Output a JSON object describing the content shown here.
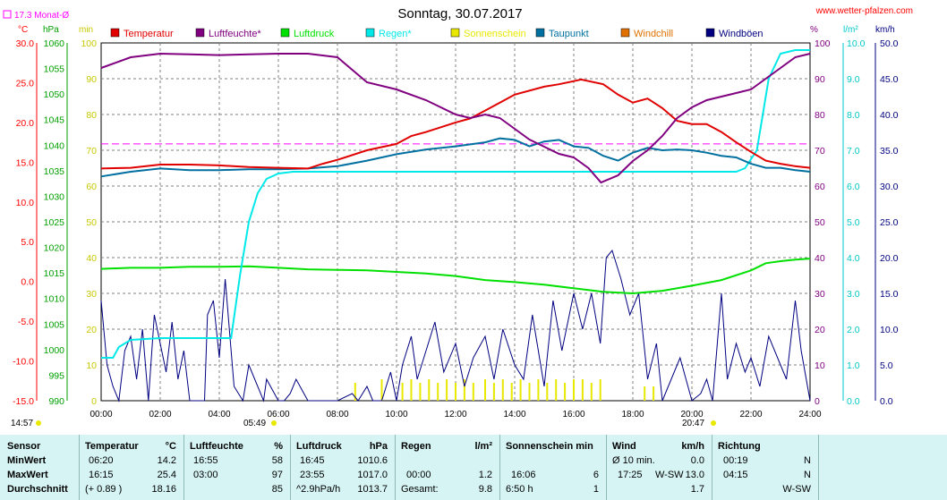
{
  "header": {
    "title": "Sonntag, 30.07.2017",
    "site": "www.wetter-pfalzen.com",
    "monthly_avg": "17.3 Monat-Ø"
  },
  "units": {
    "temp": "°C",
    "hpa": "hPa",
    "min": "min",
    "pct": "%",
    "lm2": "l/m²",
    "kmh": "km/h"
  },
  "legend": [
    {
      "name": "Temperatur",
      "color": "#e00000"
    },
    {
      "name": "Luftfeuchte*",
      "color": "#800080"
    },
    {
      "name": "Luftdruck",
      "color": "#00e000"
    },
    {
      "name": "Regen*",
      "color": "#00e8e8"
    },
    {
      "name": "Sonnenschein",
      "color": "#e8e800"
    },
    {
      "name": "Taupunkt",
      "color": "#0070a0"
    },
    {
      "name": "Windchill",
      "color": "#e07000"
    },
    {
      "name": "Windböen",
      "color": "#000080"
    }
  ],
  "chart_data": {
    "type": "line",
    "x_ticks": [
      "00:00",
      "02:00",
      "04:00",
      "06:00",
      "08:00",
      "10:00",
      "12:00",
      "14:00",
      "16:00",
      "18:00",
      "20:00",
      "22:00",
      "24:00"
    ],
    "axes": {
      "temp": {
        "ticks": [
          "30.0",
          "25.0",
          "20.0",
          "15.0",
          "10.0",
          "5.0",
          "0.0",
          "-5.0",
          "-10.0",
          "-15.0"
        ],
        "range": [
          -15,
          30
        ]
      },
      "hpa": {
        "ticks": [
          "1060",
          "1055",
          "1050",
          "1045",
          "1040",
          "1035",
          "1030",
          "1025",
          "1020",
          "1015",
          "1010",
          "1005",
          "1000",
          "995",
          "990"
        ],
        "range": [
          990,
          1060
        ]
      },
      "min": {
        "ticks": [
          "100",
          "90",
          "80",
          "70",
          "60",
          "50",
          "40",
          "30",
          "20",
          "10",
          "0"
        ],
        "range": [
          0,
          100
        ]
      },
      "pct": {
        "ticks": [
          "100",
          "90",
          "80",
          "70",
          "60",
          "50",
          "40",
          "30",
          "20",
          "10",
          "0"
        ],
        "range": [
          0,
          100
        ]
      },
      "lm2": {
        "ticks": [
          "10.0",
          "9.0",
          "8.0",
          "7.0",
          "6.0",
          "5.0",
          "4.0",
          "3.0",
          "2.0",
          "1.0",
          "0.0"
        ],
        "range": [
          0,
          10
        ]
      },
      "kmh": {
        "ticks": [
          "50.0",
          "45.0",
          "40.0",
          "35.0",
          "30.0",
          "25.0",
          "20.0",
          "15.0",
          "10.0",
          "5.0",
          "0.0"
        ],
        "range": [
          0,
          50
        ]
      }
    },
    "monthly_avg_temp": 17.3,
    "sunrise": "05:49",
    "sunset": "20:47",
    "left_time": "14:57",
    "series": [
      {
        "name": "Temperatur",
        "unit": "°C",
        "color": "#e00000",
        "x": [
          0,
          1,
          2,
          3,
          4,
          5,
          6,
          7,
          7.5,
          8,
          9,
          10,
          10.5,
          11,
          12,
          12.5,
          13,
          13.5,
          14,
          15,
          15.5,
          16,
          16.25,
          17,
          17.5,
          18,
          18.5,
          19,
          19.5,
          20,
          20.5,
          21,
          21.5,
          22,
          22.5,
          23,
          23.5,
          24
        ],
        "y": [
          14.2,
          14.3,
          14.7,
          14.7,
          14.6,
          14.4,
          14.3,
          14.2,
          14.8,
          15.3,
          16.5,
          17.3,
          18.3,
          18.8,
          20,
          20.5,
          21.5,
          22.5,
          23.5,
          24.5,
          24.8,
          25.2,
          25.4,
          24.8,
          23.5,
          22.5,
          23.0,
          21.8,
          20.2,
          19.8,
          19.8,
          18.8,
          17.5,
          16.3,
          15.2,
          14.8,
          14.5,
          14.3
        ]
      },
      {
        "name": "Luftfeuchte*",
        "unit": "%",
        "color": "#800080",
        "x": [
          0,
          1,
          2,
          3,
          4,
          5,
          6,
          7,
          8,
          9,
          10,
          11,
          12,
          12.5,
          13,
          13.5,
          14,
          14.5,
          15,
          15.5,
          16,
          16.5,
          16.92,
          17.5,
          18,
          18.5,
          19,
          19.5,
          20,
          20.5,
          21,
          21.5,
          22,
          22.5,
          23,
          23.5,
          24
        ],
        "y": [
          93,
          96,
          97,
          96.8,
          96.6,
          96.8,
          97,
          97,
          96,
          89,
          87,
          84,
          80,
          79,
          80,
          79,
          76,
          73,
          71,
          69,
          68,
          65,
          61,
          63,
          67,
          70,
          74,
          79,
          82,
          84,
          85,
          86,
          87,
          90,
          93,
          96,
          97
        ]
      },
      {
        "name": "Luftdruck",
        "unit": "hPa",
        "color": "#00e000",
        "x": [
          0,
          1,
          2,
          3,
          4,
          5,
          6,
          7,
          8,
          9,
          10,
          11,
          12,
          13,
          14,
          15,
          16,
          17,
          18,
          19,
          20,
          21,
          22,
          22.5,
          23,
          23.5,
          24
        ],
        "y": [
          1015.8,
          1016,
          1016,
          1016.2,
          1016.2,
          1016.3,
          1016,
          1015.7,
          1015.6,
          1015.5,
          1015.2,
          1014.9,
          1014.4,
          1013.6,
          1013.2,
          1012.7,
          1012,
          1011.3,
          1011,
          1011.5,
          1012.5,
          1013.6,
          1015.5,
          1016.9,
          1017.3,
          1017.6,
          1017.8
        ]
      },
      {
        "name": "Regen*",
        "unit": "l/m²",
        "color": "#00e8e8",
        "x": [
          0,
          0.4,
          0.6,
          1,
          2,
          3,
          4,
          4.4,
          4.7,
          5,
          5.3,
          5.6,
          6,
          6.5,
          7,
          8,
          10,
          14,
          16,
          18,
          20,
          21,
          21.5,
          21.8,
          22.2,
          22.4,
          22.6,
          23,
          23.5,
          24
        ],
        "y": [
          1.2,
          1.2,
          1.5,
          1.7,
          1.75,
          1.75,
          1.75,
          1.75,
          3.5,
          5.0,
          5.8,
          6.2,
          6.35,
          6.4,
          6.4,
          6.4,
          6.4,
          6.4,
          6.4,
          6.4,
          6.4,
          6.4,
          6.4,
          6.5,
          7.0,
          8.0,
          9.0,
          9.7,
          9.8,
          9.8
        ]
      },
      {
        "name": "Taupunkt",
        "unit": "°C",
        "color": "#0070a0",
        "x": [
          0,
          1,
          2,
          3,
          4,
          5,
          6,
          7,
          8,
          9,
          10,
          11,
          12,
          13,
          13.5,
          14,
          14.5,
          15,
          15.5,
          16,
          16.5,
          17,
          17.5,
          18,
          18.5,
          19,
          19.5,
          20,
          20.5,
          21,
          21.5,
          22,
          22.5,
          23,
          23.5,
          24
        ],
        "y": [
          13.2,
          13.8,
          14.2,
          14.0,
          14.0,
          14.1,
          14.1,
          14.2,
          14.5,
          15.2,
          16.0,
          16.6,
          17.0,
          17.5,
          18.0,
          17.8,
          17.0,
          17.6,
          17.8,
          17.0,
          16.8,
          15.8,
          15.2,
          16.2,
          16.8,
          16.5,
          16.6,
          16.5,
          16.2,
          15.8,
          15.6,
          14.8,
          14.3,
          14.3,
          14.0,
          13.8
        ]
      },
      {
        "name": "Windböen",
        "unit": "km/h",
        "color": "#000080",
        "x": [
          0,
          0.2,
          0.4,
          0.6,
          0.8,
          1,
          1.2,
          1.4,
          1.6,
          1.8,
          2,
          2.2,
          2.4,
          2.6,
          2.8,
          3,
          3.5,
          3.6,
          3.8,
          4,
          4.2,
          4.5,
          4.8,
          5,
          5.5,
          5.6,
          6,
          6.2,
          6.4,
          6.6,
          7,
          8,
          8.5,
          8.7,
          9,
          9.2,
          9.5,
          9.8,
          10,
          10.2,
          10.5,
          10.7,
          11,
          11.3,
          11.6,
          12,
          12.3,
          12.6,
          13,
          13.3,
          13.6,
          14,
          14.3,
          14.6,
          15,
          15.3,
          15.6,
          16,
          16.3,
          16.6,
          16.9,
          17.1,
          17.3,
          17.6,
          17.9,
          18.2,
          18.5,
          18.8,
          19,
          19.3,
          19.6,
          20,
          20.3,
          20.5,
          20.7,
          21,
          21.2,
          21.5,
          21.8,
          22,
          22.3,
          22.6,
          23,
          23.2,
          23.5,
          23.7,
          24
        ],
        "y": [
          14,
          5,
          2,
          0,
          7,
          9,
          3,
          10,
          0,
          12,
          8,
          4,
          11,
          3,
          7,
          0,
          0,
          12,
          14,
          6,
          17,
          2,
          0,
          5,
          0,
          3,
          0,
          0,
          1,
          3,
          0,
          0,
          1,
          0,
          2,
          0,
          0,
          4,
          0,
          5,
          9,
          3,
          7,
          11,
          4,
          8,
          2,
          6,
          9,
          3,
          10,
          5,
          3,
          12,
          2,
          14,
          7,
          15,
          10,
          15,
          8,
          20,
          21,
          17,
          12,
          15,
          3,
          8,
          0,
          3,
          6,
          0,
          1,
          3,
          0,
          15,
          3,
          8,
          4,
          6,
          2,
          9,
          5,
          3,
          14,
          7,
          0
        ]
      },
      {
        "name": "Sonnenschein",
        "unit": "min",
        "color": "#e8e800",
        "x": [
          8.6,
          9.5,
          10.2,
          10.5,
          10.8,
          11.1,
          11.4,
          11.7,
          12.0,
          12.3,
          12.6,
          13.0,
          13.3,
          13.6,
          13.9,
          14.2,
          14.5,
          14.8,
          15.1,
          15.4,
          15.7,
          16.0,
          16.3,
          16.6,
          16.9,
          18.4,
          18.7
        ],
        "y": [
          5,
          6,
          5,
          6,
          5,
          6,
          5,
          6,
          5,
          6,
          5,
          6,
          5,
          6,
          5,
          6,
          5,
          6,
          5,
          6,
          5,
          6,
          6,
          5,
          6,
          4,
          4
        ]
      }
    ]
  },
  "stats": {
    "headers": {
      "sensor": "Sensor",
      "temp": "Temperatur",
      "temp_unit": "°C",
      "hum": "Luftfeuchte",
      "hum_unit": "%",
      "press": "Luftdruck",
      "press_unit": "hPa",
      "rain": "Regen",
      "rain_unit": "l/m²",
      "sun": "Sonnenschein min",
      "wind": "Wind",
      "wind_unit": "km/h",
      "dir": "Richtung"
    },
    "rows": [
      {
        "label": "MinWert",
        "temp_time": "06:20",
        "temp_val": "14.2",
        "hum_time": "16:55",
        "hum_val": "58",
        "press_time": "16:45",
        "press_val": "1010.6",
        "rain_time": "",
        "rain_val": "",
        "sun_time": "",
        "sun_val": "",
        "wind_time": "Ø 10 min.",
        "wind_dir": "",
        "wind_val": "0.0",
        "dir_time": "00:19",
        "dir_val": "N"
      },
      {
        "label": "MaxWert",
        "temp_time": "16:15",
        "temp_val": "25.4",
        "hum_time": "03:00",
        "hum_val": "97",
        "press_time": "23:55",
        "press_val": "1017.0",
        "rain_time": "00:00",
        "rain_val": "1.2",
        "sun_time": "16:06",
        "sun_val": "6",
        "wind_time": "17:25",
        "wind_dir": "W-SW",
        "wind_val": "13.0",
        "dir_time": "04:15",
        "dir_val": "N"
      },
      {
        "label": "Durchschnitt",
        "temp_time": "(+ 0.89 )",
        "temp_val": "18.16",
        "hum_time": "",
        "hum_val": "85",
        "press_time": "^2.9hPa/h",
        "press_val": "1013.7",
        "rain_time": "Gesamt:",
        "rain_val": "9.8",
        "sun_time": "6:50 h",
        "sun_val": "1",
        "wind_time": "",
        "wind_dir": "",
        "wind_val": "1.7",
        "dir_time": "",
        "dir_val": "W-SW"
      }
    ]
  }
}
